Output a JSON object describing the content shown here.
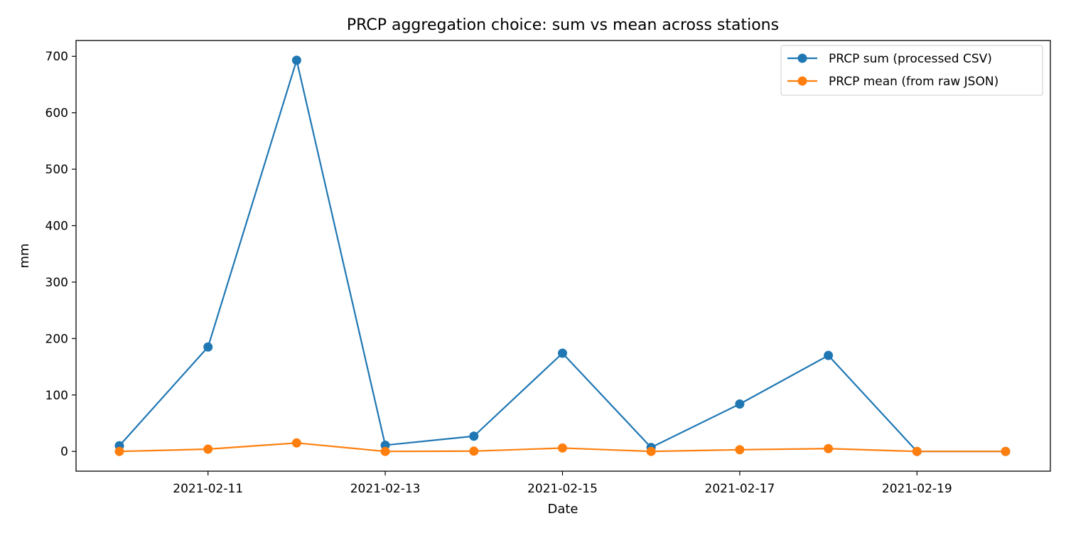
{
  "chart_data": {
    "type": "line",
    "title": "PRCP aggregation choice: sum vs mean across stations",
    "xlabel": "Date",
    "ylabel": "mm",
    "x": [
      "2021-02-10",
      "2021-02-11",
      "2021-02-12",
      "2021-02-13",
      "2021-02-14",
      "2021-02-15",
      "2021-02-16",
      "2021-02-17",
      "2021-02-18",
      "2021-02-19",
      "2021-02-20"
    ],
    "x_ticks": [
      "2021-02-11",
      "2021-02-13",
      "2021-02-15",
      "2021-02-17",
      "2021-02-19"
    ],
    "y_ticks": [
      0,
      100,
      200,
      300,
      400,
      500,
      600,
      700
    ],
    "ylim": [
      -35,
      728
    ],
    "grid": false,
    "legend_position": "top-right",
    "series": [
      {
        "name": "PRCP sum (processed CSV)",
        "color": "#1f77b4",
        "marker": "circle",
        "values": [
          10,
          185,
          693,
          11,
          27,
          174,
          7,
          84,
          170,
          0,
          0
        ]
      },
      {
        "name": "PRCP mean (from raw JSON)",
        "color": "#ff7f0e",
        "marker": "circle",
        "values": [
          0,
          4,
          15,
          0,
          0.5,
          6,
          0,
          3,
          5,
          0,
          0
        ]
      }
    ]
  }
}
